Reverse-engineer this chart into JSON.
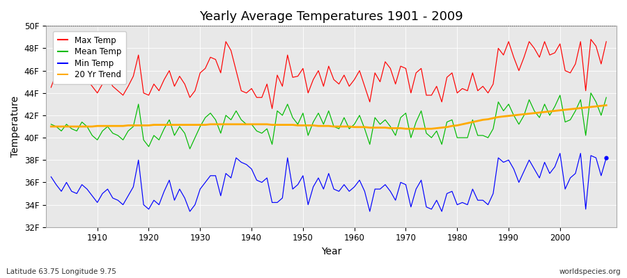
{
  "title": "Yearly Average Temperatures 1901 - 2009",
  "xlabel": "Year",
  "ylabel": "Temperature",
  "bottom_left_text": "Latitude 63.75 Longitude 9.75",
  "bottom_right_text": "worldspecies.org",
  "year_start": 1901,
  "year_end": 2009,
  "ylim": [
    32,
    50
  ],
  "yticks": [
    32,
    34,
    36,
    38,
    40,
    42,
    44,
    46,
    48,
    50
  ],
  "ytick_labels": [
    "32F",
    "34F",
    "36F",
    "38F",
    "40F",
    "42F",
    "44F",
    "46F",
    "48F",
    "50F"
  ],
  "fig_bg_color": "#ffffff",
  "plot_bg_color": "#e8e8e8",
  "colors": {
    "max": "#ff0000",
    "mean": "#00bb00",
    "min": "#0000ff",
    "trend": "#ffaa00"
  },
  "max_temp": [
    44.5,
    45.8,
    45.2,
    46.2,
    44.8,
    45.0,
    45.5,
    45.2,
    44.6,
    44.0,
    44.8,
    45.4,
    44.6,
    44.2,
    43.8,
    44.6,
    45.5,
    47.4,
    44.0,
    43.8,
    44.8,
    44.2,
    45.2,
    46.0,
    44.6,
    45.5,
    44.8,
    43.6,
    44.2,
    45.8,
    46.2,
    47.2,
    47.0,
    45.8,
    48.6,
    47.8,
    46.0,
    44.2,
    44.0,
    44.4,
    43.6,
    43.6,
    44.8,
    42.6,
    45.6,
    44.6,
    47.4,
    45.4,
    45.5,
    46.2,
    44.0,
    45.2,
    46.0,
    44.6,
    46.4,
    45.2,
    44.8,
    45.6,
    44.6,
    45.2,
    46.0,
    44.6,
    43.2,
    45.8,
    45.0,
    46.8,
    46.2,
    44.8,
    46.4,
    46.2,
    44.0,
    45.8,
    46.2,
    43.8,
    43.8,
    44.6,
    43.2,
    45.4,
    45.8,
    44.0,
    44.4,
    44.2,
    45.8,
    44.2,
    44.6,
    44.0,
    44.8,
    48.0,
    47.4,
    48.6,
    47.2,
    46.0,
    47.2,
    48.6,
    48.0,
    47.2,
    48.6,
    47.4,
    47.6,
    48.4,
    46.0,
    45.8,
    46.6,
    48.6,
    44.2,
    48.8,
    48.2,
    46.6,
    48.6
  ],
  "mean_temp": [
    41.2,
    41.0,
    40.6,
    41.2,
    40.8,
    40.6,
    41.4,
    41.0,
    40.2,
    39.8,
    40.6,
    41.0,
    40.4,
    40.2,
    39.8,
    40.6,
    41.0,
    43.0,
    39.8,
    39.2,
    40.2,
    39.8,
    40.8,
    41.6,
    40.2,
    41.0,
    40.4,
    39.0,
    40.0,
    41.0,
    41.8,
    42.2,
    41.6,
    40.4,
    42.0,
    41.6,
    42.4,
    41.6,
    41.2,
    41.2,
    40.6,
    40.4,
    40.8,
    39.4,
    42.4,
    42.0,
    43.0,
    41.8,
    41.2,
    42.2,
    40.2,
    41.4,
    42.2,
    41.2,
    42.4,
    41.0,
    40.8,
    41.8,
    40.8,
    41.2,
    42.0,
    40.8,
    39.4,
    41.8,
    41.2,
    41.6,
    41.0,
    40.2,
    41.8,
    42.2,
    40.0,
    41.4,
    42.4,
    40.4,
    40.0,
    40.6,
    39.4,
    41.4,
    41.6,
    40.0,
    40.0,
    40.0,
    41.6,
    40.2,
    40.2,
    40.0,
    40.8,
    43.2,
    42.4,
    43.0,
    42.0,
    41.2,
    42.0,
    43.4,
    42.4,
    41.8,
    43.0,
    42.0,
    42.8,
    43.8,
    41.4,
    41.6,
    42.4,
    43.4,
    40.2,
    44.0,
    43.2,
    42.0,
    43.6
  ],
  "min_temp": [
    36.5,
    35.8,
    35.2,
    36.0,
    35.2,
    35.0,
    35.8,
    35.4,
    34.8,
    34.2,
    35.0,
    35.4,
    34.6,
    34.4,
    34.0,
    34.8,
    35.6,
    38.0,
    34.0,
    33.6,
    34.4,
    34.0,
    35.2,
    36.2,
    34.4,
    35.4,
    34.6,
    33.4,
    34.0,
    35.4,
    36.0,
    36.6,
    36.6,
    34.8,
    36.8,
    36.4,
    38.2,
    37.8,
    37.6,
    37.2,
    36.2,
    36.0,
    36.4,
    34.2,
    34.2,
    34.6,
    38.2,
    35.4,
    35.8,
    36.6,
    34.0,
    35.6,
    36.4,
    35.4,
    36.8,
    35.4,
    35.2,
    35.8,
    35.2,
    35.6,
    36.2,
    35.2,
    33.4,
    35.4,
    35.4,
    35.8,
    35.2,
    34.4,
    36.0,
    35.8,
    33.8,
    35.4,
    36.2,
    33.8,
    33.6,
    34.4,
    33.4,
    35.0,
    35.2,
    34.0,
    34.2,
    34.0,
    35.4,
    34.4,
    34.4,
    34.0,
    35.0,
    38.2,
    37.8,
    38.0,
    37.2,
    36.0,
    37.0,
    38.0,
    37.2,
    36.4,
    37.8,
    36.8,
    37.4,
    38.6,
    35.4,
    36.4,
    36.8,
    38.6,
    33.6,
    38.4,
    38.2,
    36.6,
    38.2
  ],
  "trend": [
    41.0,
    41.0,
    41.0,
    41.0,
    41.0,
    41.0,
    41.0,
    41.0,
    41.0,
    41.05,
    41.05,
    41.05,
    41.05,
    41.05,
    41.05,
    41.1,
    41.1,
    41.1,
    41.1,
    41.1,
    41.15,
    41.15,
    41.15,
    41.15,
    41.15,
    41.15,
    41.15,
    41.15,
    41.15,
    41.15,
    41.15,
    41.2,
    41.2,
    41.2,
    41.2,
    41.2,
    41.2,
    41.2,
    41.2,
    41.2,
    41.2,
    41.2,
    41.2,
    41.15,
    41.15,
    41.15,
    41.15,
    41.15,
    41.1,
    41.1,
    41.1,
    41.1,
    41.05,
    41.05,
    41.05,
    41.0,
    41.0,
    41.0,
    41.0,
    40.95,
    40.95,
    40.95,
    40.9,
    40.9,
    40.9,
    40.9,
    40.85,
    40.85,
    40.85,
    40.8,
    40.8,
    40.8,
    40.8,
    40.8,
    40.8,
    40.85,
    40.9,
    40.95,
    41.05,
    41.1,
    41.2,
    41.3,
    41.4,
    41.5,
    41.6,
    41.65,
    41.75,
    41.85,
    41.9,
    41.95,
    42.0,
    42.05,
    42.1,
    42.15,
    42.2,
    42.25,
    42.3,
    42.35,
    42.4,
    42.45,
    42.5,
    42.55,
    42.6,
    42.65,
    42.7,
    42.75,
    42.8,
    42.85,
    42.9
  ]
}
